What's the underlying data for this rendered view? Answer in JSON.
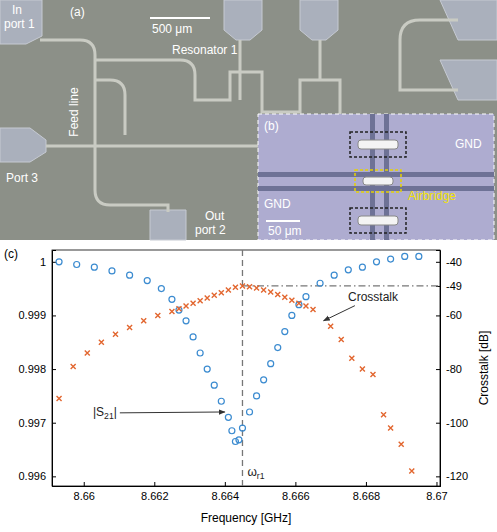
{
  "micrograph": {
    "label": "(a)",
    "scale_bar": "500 μm",
    "in_port": [
      "In",
      "port 1"
    ],
    "out_port": [
      "Out",
      "port 2"
    ],
    "port3": "Port 3",
    "resonator": "Resonator 1",
    "feed_line": "Feed line"
  },
  "inset": {
    "label": "(b)",
    "scale_bar": "50 μm",
    "ground_labels": [
      "GND",
      "GND"
    ],
    "airbridge": "Airbridge"
  },
  "chart_data": {
    "type": "scatter",
    "panel_label": "(c)",
    "x_label": "Frequency [GHz]",
    "y2_label": "Crosstalk [dB]",
    "xlim": [
      8.6591,
      8.6701
    ],
    "xticks": [
      8.66,
      8.662,
      8.664,
      8.666,
      8.668,
      8.67
    ],
    "ylim": [
      0.99582,
      1.00022
    ],
    "yticks": [
      0.996,
      0.997,
      0.998,
      0.999,
      1
    ],
    "y2lim": [
      -123.6,
      -35.6
    ],
    "y2ticks": [
      -40,
      -49,
      -60,
      -80,
      -100,
      -120
    ],
    "series": [
      {
        "color": "#3b8bd0",
        "marker": "circle",
        "axis": "y",
        "x": [
          8.6593,
          8.6598,
          8.6603,
          8.6608,
          8.6613,
          8.6618,
          8.6622,
          8.6625,
          8.6627,
          8.6629,
          8.6631,
          8.6633,
          8.6635,
          8.6637,
          8.6639,
          8.6641,
          8.6642,
          8.6643,
          8.6644,
          8.6645,
          8.6647,
          8.6649,
          8.6651,
          8.6653,
          8.6655,
          8.6657,
          8.6659,
          8.6661,
          8.6663,
          8.6667,
          8.6671,
          8.6675,
          8.6679,
          8.6683,
          8.6687,
          8.6691,
          8.6695
        ],
        "values": [
          1,
          0.99995,
          0.9999,
          0.99983,
          0.99975,
          0.99965,
          0.9995,
          0.9993,
          0.9991,
          0.9989,
          0.9986,
          0.9983,
          0.998,
          0.9977,
          0.9974,
          0.9971,
          0.99685,
          0.99665,
          0.99668,
          0.9969,
          0.9972,
          0.9975,
          0.9978,
          0.9981,
          0.9984,
          0.9987,
          0.999,
          0.9992,
          0.99935,
          0.9996,
          0.99975,
          0.99985,
          0.9999,
          1,
          1.00005,
          1.0001,
          1.0001
        ]
      },
      {
        "color": "#e2662f",
        "marker": "x",
        "axis": "y2",
        "x": [
          8.6593,
          8.6597,
          8.6601,
          8.6605,
          8.6609,
          8.6613,
          8.6617,
          8.6621,
          8.6625,
          8.6627,
          8.6629,
          8.6631,
          8.6633,
          8.6635,
          8.6637,
          8.6639,
          8.6641,
          8.6643,
          8.6645,
          8.6647,
          8.6649,
          8.6651,
          8.6653,
          8.6655,
          8.6657,
          8.6659,
          8.6661,
          8.6663,
          8.6665,
          8.667,
          8.6673,
          8.6676,
          8.6679,
          8.6682,
          8.6685,
          8.6687,
          8.669,
          8.6693
        ],
        "values": [
          -91,
          -79,
          -74,
          -70,
          -67,
          -64.5,
          -62,
          -60,
          -58.5,
          -57.5,
          -56.5,
          -55.5,
          -54.5,
          -53.5,
          -52.5,
          -51.5,
          -50.5,
          -49.5,
          -49,
          -49.3,
          -49.8,
          -50.5,
          -51.3,
          -52.2,
          -53.2,
          -54.3,
          -55.5,
          -56.5,
          -57.8,
          -64,
          -69,
          -76,
          -80,
          -82,
          -97,
          -102,
          -108,
          -118
        ]
      }
    ],
    "vline": {
      "x": 8.6645,
      "label": "ωr1",
      "line_style": "dashed"
    },
    "hline": {
      "x": 8.6645,
      "y2": -49,
      "line_style": "dashdot"
    },
    "annotations": [
      {
        "text": "|S21|",
        "axis": "y",
        "x": 8.6606,
        "y": 0.9972,
        "arrow_x": 8.664,
        "arrow_y": 0.9972
      },
      {
        "text": "Crosstalk",
        "axis": "y2",
        "x": 8.6682,
        "y": -53,
        "arrow_x": 8.6668,
        "arrow_y": -62
      }
    ]
  }
}
